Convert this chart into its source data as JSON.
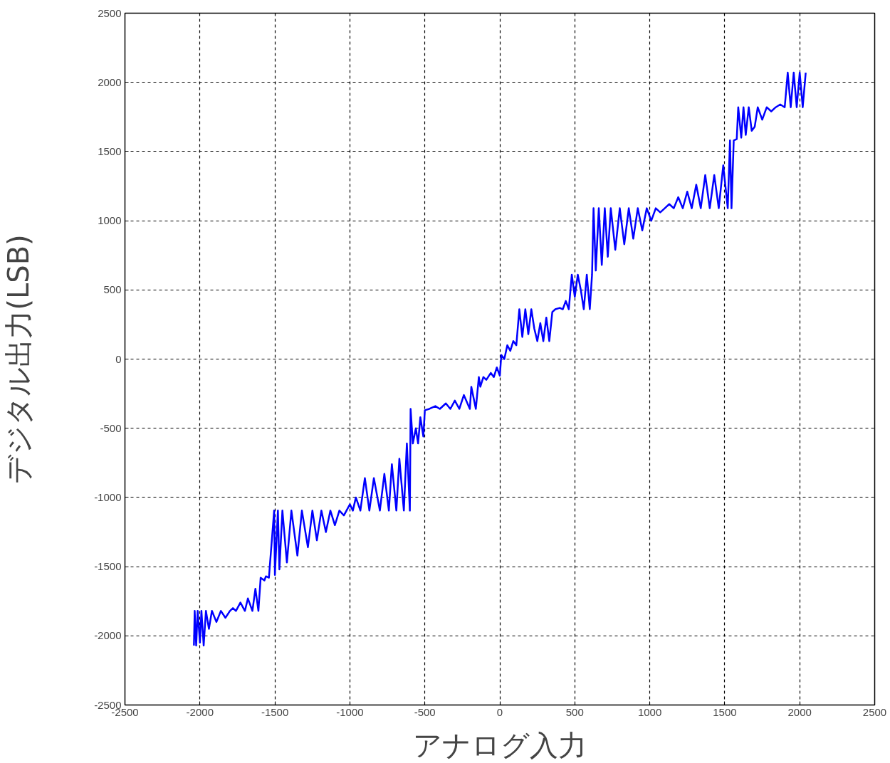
{
  "chart_data": {
    "type": "line",
    "xlabel": "アナログ入力",
    "ylabel": "デジタル出力(LSB)",
    "x": [
      -2040,
      -2035,
      -2025,
      -2015,
      -2000,
      -1990,
      -1975,
      -1960,
      -1940,
      -1920,
      -1890,
      -1860,
      -1830,
      -1800,
      -1780,
      -1760,
      -1730,
      -1700,
      -1680,
      -1650,
      -1630,
      -1610,
      -1595,
      -1570,
      -1560,
      -1540,
      -1505,
      -1500,
      -1480,
      -1470,
      -1450,
      -1420,
      -1390,
      -1350,
      -1320,
      -1280,
      -1250,
      -1220,
      -1190,
      -1160,
      -1130,
      -1100,
      -1070,
      -1040,
      -1000,
      -980,
      -960,
      -930,
      -900,
      -870,
      -840,
      -800,
      -770,
      -740,
      -720,
      -690,
      -670,
      -640,
      -620,
      -600,
      -595,
      -580,
      -560,
      -545,
      -530,
      -510,
      -500,
      -470,
      -430,
      -400,
      -360,
      -330,
      -300,
      -270,
      -240,
      -200,
      -190,
      -160,
      -140,
      -130,
      -110,
      -90,
      -60,
      -40,
      -20,
      0,
      10,
      30,
      50,
      70,
      90,
      110,
      130,
      150,
      170,
      190,
      210,
      230,
      250,
      270,
      290,
      310,
      330,
      350,
      370,
      400,
      420,
      440,
      460,
      480,
      500,
      520,
      540,
      560,
      580,
      600,
      615,
      625,
      640,
      660,
      680,
      700,
      720,
      740,
      770,
      800,
      830,
      860,
      890,
      920,
      950,
      980,
      1010,
      1040,
      1070,
      1100,
      1130,
      1160,
      1190,
      1220,
      1250,
      1280,
      1310,
      1340,
      1370,
      1400,
      1430,
      1460,
      1490,
      1520,
      1535,
      1545,
      1560,
      1580,
      1590,
      1610,
      1625,
      1640,
      1660,
      1680,
      1700,
      1720,
      1750,
      1780,
      1810,
      1840,
      1870,
      1900,
      1920,
      1940,
      1960,
      1980,
      2000,
      2020,
      2040
    ],
    "values": [
      -2070,
      -1820,
      -2070,
      -1820,
      -2050,
      -1820,
      -2070,
      -1820,
      -1950,
      -1820,
      -1900,
      -1820,
      -1870,
      -1820,
      -1800,
      -1820,
      -1760,
      -1820,
      -1730,
      -1820,
      -1660,
      -1820,
      -1580,
      -1600,
      -1570,
      -1580,
      -1095,
      -1560,
      -1095,
      -1520,
      -1095,
      -1470,
      -1095,
      -1420,
      -1095,
      -1360,
      -1095,
      -1310,
      -1095,
      -1250,
      -1095,
      -1200,
      -1095,
      -1130,
      -1050,
      -1095,
      -1000,
      -1095,
      -860,
      -1095,
      -860,
      -1095,
      -830,
      -1095,
      -760,
      -1095,
      -720,
      -1095,
      -610,
      -1095,
      -360,
      -610,
      -500,
      -610,
      -420,
      -560,
      -370,
      -360,
      -340,
      -360,
      -320,
      -360,
      -300,
      -360,
      -260,
      -360,
      -200,
      -360,
      -130,
      -200,
      -130,
      -150,
      -100,
      -130,
      -60,
      -120,
      30,
      0,
      100,
      60,
      130,
      100,
      360,
      160,
      360,
      180,
      360,
      220,
      130,
      260,
      130,
      300,
      130,
      340,
      360,
      370,
      360,
      420,
      360,
      610,
      450,
      610,
      500,
      360,
      610,
      360,
      610,
      1090,
      640,
      1090,
      680,
      1090,
      740,
      1090,
      790,
      1090,
      830,
      1090,
      870,
      1090,
      930,
      1090,
      1000,
      1090,
      1060,
      1090,
      1120,
      1090,
      1170,
      1090,
      1210,
      1090,
      1260,
      1090,
      1330,
      1090,
      1330,
      1090,
      1400,
      1090,
      1580,
      1090,
      1580,
      1590,
      1820,
      1600,
      1820,
      1620,
      1820,
      1650,
      1680,
      1820,
      1730,
      1820,
      1790,
      1820,
      1840,
      1820,
      2070,
      1820,
      2070,
      1820,
      2070,
      1820,
      2070
    ],
    "color": "#0000ff",
    "xlim": [
      -2500,
      2500
    ],
    "ylim": [
      -2500,
      2500
    ],
    "xticks": [
      -2500,
      -2000,
      -1500,
      -1000,
      -500,
      0,
      500,
      1000,
      1500,
      2000,
      2500
    ],
    "yticks": [
      -2500,
      -2000,
      -1500,
      -1000,
      -500,
      0,
      500,
      1000,
      1500,
      2000,
      2500
    ],
    "grid": true
  }
}
